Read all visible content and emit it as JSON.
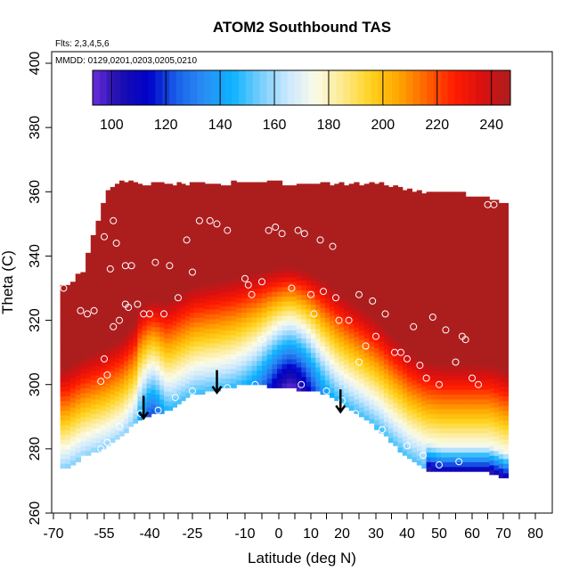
{
  "chart_data": {
    "type": "heatmap",
    "title": "ATOM2 Southbound TAS",
    "notes": {
      "flights": "Flts: 2,3,4,5,6",
      "dates": "MMDD: 0129,0201,0203,0205,0210"
    },
    "xlabel": "Latitude (deg N)",
    "ylabel": "Theta (C)",
    "xlim": [
      -70,
      80
    ],
    "ylim": [
      260,
      400
    ],
    "x_ticks": [
      -70,
      -55,
      -40,
      -25,
      -10,
      0,
      10,
      20,
      30,
      40,
      50,
      60,
      70,
      80
    ],
    "x_tick_labels": [
      "-70",
      "-55",
      "-40",
      "-25",
      "-10",
      "0",
      "10",
      "20",
      "30",
      "40",
      "50",
      "60",
      "70",
      "80"
    ],
    "y_ticks": [
      260,
      280,
      300,
      320,
      340,
      360,
      380,
      400
    ],
    "y_tick_labels": [
      "260",
      "280",
      "300",
      "320",
      "340",
      "360",
      "380",
      "400"
    ],
    "colorbar": {
      "range": [
        93,
        247
      ],
      "ticks": [
        100,
        120,
        140,
        160,
        180,
        200,
        220,
        240
      ],
      "tick_labels": [
        "100",
        "120",
        "140",
        "160",
        "180",
        "200",
        "220",
        "240"
      ],
      "colors": [
        "#6a2bd8",
        "#1a0fb0",
        "#0000c8",
        "#1a5fe8",
        "#2a8ef5",
        "#0bb2ff",
        "#74cdfb",
        "#cbe8ff",
        "#fbfbe8",
        "#fde98a",
        "#ffd21e",
        "#ffa500",
        "#ff6200",
        "#ff1c00",
        "#d91010",
        "#ac1e1e"
      ]
    },
    "field": {
      "description": "True airspeed (TAS) as function of latitude and potential temperature",
      "lat": [
        -67,
        -62,
        -55,
        -50,
        -45,
        -40,
        -35,
        -30,
        -25,
        -20,
        -15,
        -10,
        -5,
        0,
        3,
        5,
        10,
        15,
        20,
        25,
        30,
        35,
        40,
        45,
        50,
        55,
        60,
        65,
        70
      ],
      "lower_boundary_theta": [
        274.5,
        278,
        281,
        284,
        289,
        291,
        292,
        295,
        297.5,
        298.5,
        299.5,
        300.5,
        300,
        299.5,
        299.5,
        299,
        298.5,
        297,
        294,
        290.5,
        286.5,
        281.5,
        277,
        274,
        273,
        273,
        273,
        273,
        271
      ],
      "upper_boundary_theta": [
        330,
        335,
        359,
        363,
        362,
        362,
        362,
        362,
        362,
        362,
        362,
        363,
        363,
        362,
        362,
        362,
        362,
        362,
        362,
        362,
        362,
        361,
        360,
        359,
        359,
        359,
        358,
        357,
        356
      ]
    },
    "arrows": [
      {
        "lat": -42,
        "theta_from": 296.5,
        "theta_to": 289.5
      },
      {
        "lat": -18,
        "theta_from": 304.5,
        "theta_to": 297.5
      },
      {
        "lat": 19.5,
        "theta_from": 298.5,
        "theta_to": 291.5
      }
    ],
    "observations": [
      {
        "lat": -67,
        "theta": 330
      },
      {
        "lat": -66,
        "theta": 336
      },
      {
        "lat": -65,
        "theta": 334
      },
      {
        "lat": -62,
        "theta": 323
      },
      {
        "lat": -60,
        "theta": 322
      },
      {
        "lat": -58,
        "theta": 323
      },
      {
        "lat": -55,
        "theta": 346
      },
      {
        "lat": -52,
        "theta": 351
      },
      {
        "lat": -53,
        "theta": 336
      },
      {
        "lat": -51,
        "theta": 344
      },
      {
        "lat": -48,
        "theta": 337
      },
      {
        "lat": -46,
        "theta": 337
      },
      {
        "lat": -48,
        "theta": 325
      },
      {
        "lat": -47,
        "theta": 324
      },
      {
        "lat": -50,
        "theta": 320
      },
      {
        "lat": -52,
        "theta": 318
      },
      {
        "lat": -55,
        "theta": 308
      },
      {
        "lat": -54,
        "theta": 303
      },
      {
        "lat": -56,
        "theta": 301
      },
      {
        "lat": -44,
        "theta": 325
      },
      {
        "lat": -42,
        "theta": 322
      },
      {
        "lat": -40,
        "theta": 322
      },
      {
        "lat": -38,
        "theta": 338
      },
      {
        "lat": -35,
        "theta": 322
      },
      {
        "lat": -33,
        "theta": 337
      },
      {
        "lat": -30,
        "theta": 327
      },
      {
        "lat": -27,
        "theta": 345
      },
      {
        "lat": -25,
        "theta": 335
      },
      {
        "lat": -23,
        "theta": 351
      },
      {
        "lat": -20,
        "theta": 351
      },
      {
        "lat": -18,
        "theta": 350
      },
      {
        "lat": -15,
        "theta": 348
      },
      {
        "lat": -10,
        "theta": 333
      },
      {
        "lat": -9,
        "theta": 331
      },
      {
        "lat": -8,
        "theta": 328
      },
      {
        "lat": -5,
        "theta": 332
      },
      {
        "lat": -3,
        "theta": 348
      },
      {
        "lat": -1,
        "theta": 349
      },
      {
        "lat": 1,
        "theta": 347
      },
      {
        "lat": 4,
        "theta": 330
      },
      {
        "lat": 6,
        "theta": 348
      },
      {
        "lat": 8,
        "theta": 347
      },
      {
        "lat": 10,
        "theta": 328
      },
      {
        "lat": 13,
        "theta": 345
      },
      {
        "lat": 14,
        "theta": 329
      },
      {
        "lat": 17,
        "theta": 343
      },
      {
        "lat": 18,
        "theta": 327
      },
      {
        "lat": 22,
        "theta": 320
      },
      {
        "lat": 25,
        "theta": 328
      },
      {
        "lat": 27,
        "theta": 312
      },
      {
        "lat": 29,
        "theta": 326
      },
      {
        "lat": 30,
        "theta": 315
      },
      {
        "lat": 33,
        "theta": 322
      },
      {
        "lat": 36,
        "theta": 310
      },
      {
        "lat": 38,
        "theta": 310
      },
      {
        "lat": 40,
        "theta": 308
      },
      {
        "lat": 42,
        "theta": 318
      },
      {
        "lat": 44,
        "theta": 306
      },
      {
        "lat": 46,
        "theta": 302
      },
      {
        "lat": 48,
        "theta": 321
      },
      {
        "lat": 50,
        "theta": 300
      },
      {
        "lat": 52,
        "theta": 317
      },
      {
        "lat": 55,
        "theta": 307
      },
      {
        "lat": 57,
        "theta": 315
      },
      {
        "lat": 58,
        "theta": 314
      },
      {
        "lat": 60,
        "theta": 302
      },
      {
        "lat": 62,
        "theta": 300
      },
      {
        "lat": 65,
        "theta": 356
      },
      {
        "lat": 67,
        "theta": 356
      },
      {
        "lat": -25,
        "theta": 298
      },
      {
        "lat": -31,
        "theta": 296
      },
      {
        "lat": -37,
        "theta": 292
      },
      {
        "lat": -43,
        "theta": 291
      },
      {
        "lat": -50,
        "theta": 287
      },
      {
        "lat": -54,
        "theta": 282
      },
      {
        "lat": -56,
        "theta": 280
      },
      {
        "lat": -7,
        "theta": 300
      },
      {
        "lat": -15,
        "theta": 299
      },
      {
        "lat": 7,
        "theta": 300
      },
      {
        "lat": 15,
        "theta": 298
      },
      {
        "lat": 20,
        "theta": 295
      },
      {
        "lat": 24,
        "theta": 291
      },
      {
        "lat": 32,
        "theta": 286
      },
      {
        "lat": 40,
        "theta": 281
      },
      {
        "lat": 45,
        "theta": 278
      },
      {
        "lat": 50,
        "theta": 275
      },
      {
        "lat": 56,
        "theta": 276
      },
      {
        "lat": 25,
        "theta": 307
      },
      {
        "lat": 19,
        "theta": 320
      },
      {
        "lat": 11,
        "theta": 322
      },
      {
        "lat": -5,
        "theta": 314
      }
    ]
  }
}
